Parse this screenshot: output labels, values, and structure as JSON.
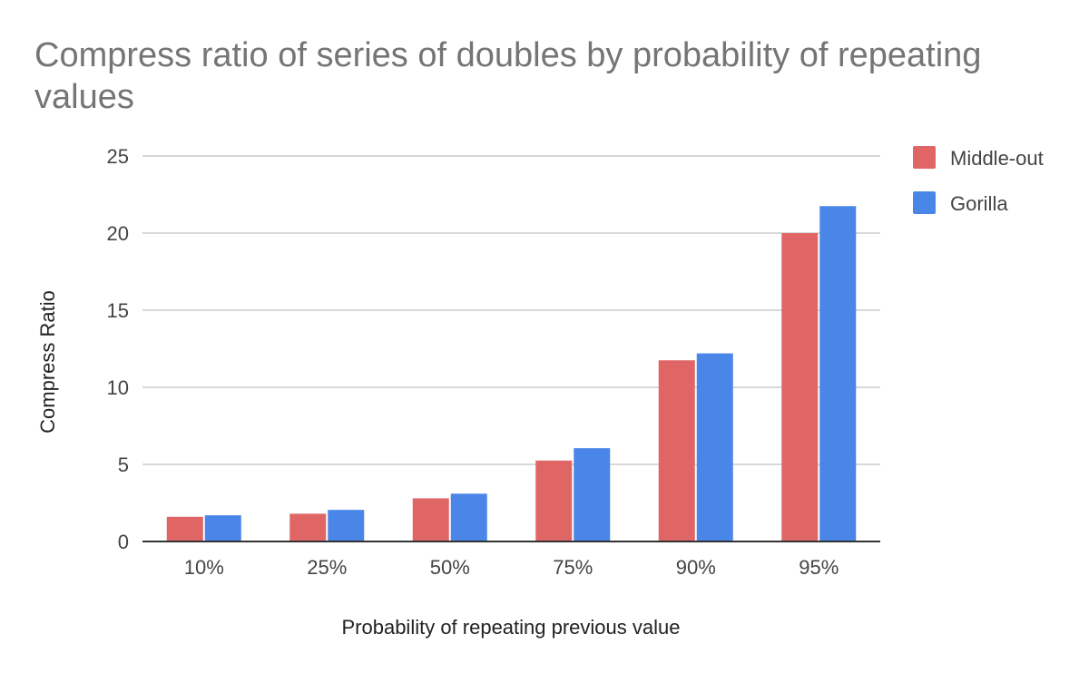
{
  "chart_data": {
    "type": "bar",
    "title": "Compress ratio of series of doubles by probability of repeating values",
    "xlabel": "Probability of repeating previous value",
    "ylabel": "Compress Ratio",
    "categories": [
      "10%",
      "25%",
      "50%",
      "75%",
      "90%",
      "95%"
    ],
    "series": [
      {
        "name": "Middle-out",
        "color": "#e06666",
        "values": [
          1.6,
          1.8,
          2.8,
          5.25,
          11.75,
          20.0
        ]
      },
      {
        "name": "Gorilla",
        "color": "#4a86e8",
        "values": [
          1.7,
          2.05,
          3.1,
          6.05,
          12.2,
          21.75
        ]
      }
    ],
    "ylim": [
      0,
      25
    ],
    "yticks": [
      0,
      5,
      10,
      15,
      20,
      25
    ],
    "grid": true,
    "legend_position": "right"
  }
}
